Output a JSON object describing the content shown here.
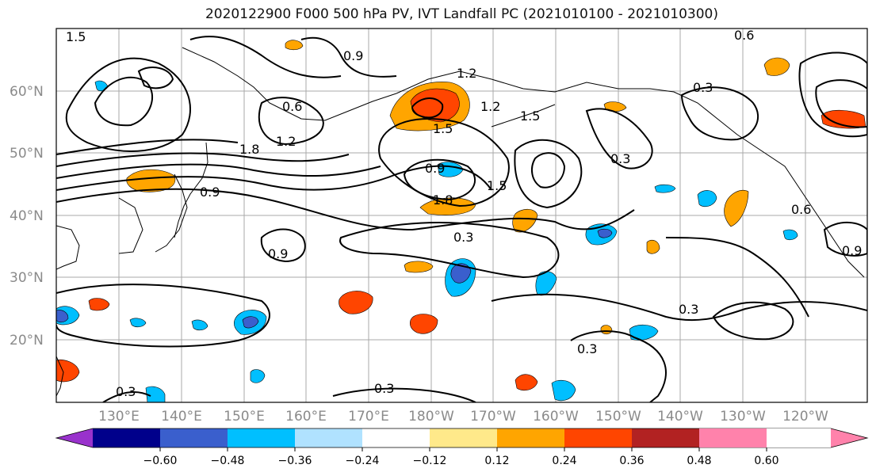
{
  "title": "2020122900 F000 500 hPa PV, IVT Landfall PC (2021010100 - 2021010300)",
  "map": {
    "lat_labels": [
      "60°N",
      "50°N",
      "40°N",
      "30°N",
      "20°N"
    ],
    "lon_labels": [
      "130°E",
      "140°E",
      "150°E",
      "160°E",
      "170°E",
      "180°W",
      "170°W",
      "160°W",
      "150°W",
      "140°W",
      "130°W",
      "120°W"
    ],
    "contour_labels": [
      "1.5",
      "0.9",
      "0.6",
      "1.2",
      "1.2",
      "1.2",
      "1.5",
      "1.5",
      "0.6",
      "0.3",
      "1.8",
      "0.9",
      "1.8",
      "0.9",
      "1.5",
      "0.3",
      "0.3",
      "0.9",
      "0.3",
      "0.3",
      "0.3",
      "0.9",
      "0.6",
      "0.3"
    ]
  },
  "colorbar": {
    "ticks": [
      "−0.60",
      "−0.48",
      "−0.36",
      "−0.24",
      "−0.12",
      "0.12",
      "0.24",
      "0.36",
      "0.48",
      "0.60"
    ],
    "colors": [
      "#9932cc",
      "#00008b",
      "#3a5fcd",
      "#00bfff",
      "#b0e2ff",
      "#ffffff",
      "#ffe98a",
      "#ffa500",
      "#ff4500",
      "#b22222",
      "#ff82ab"
    ]
  }
}
